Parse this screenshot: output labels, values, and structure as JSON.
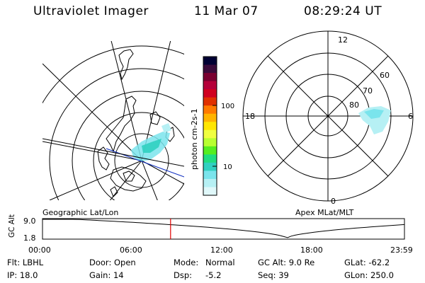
{
  "header": {
    "title": "Ultraviolet Imager",
    "date": "11 Mar 07",
    "time": "08:29:24 UT"
  },
  "colorbar": {
    "unit_label": "photon cm-2s-1",
    "ticks": [
      "100",
      "10"
    ],
    "colors": [
      "#000033",
      "#3a0a3a",
      "#7a0030",
      "#b5003a",
      "#d00020",
      "#e03000",
      "#ff7a00",
      "#ffb400",
      "#ffe600",
      "#f0ff40",
      "#b8ff30",
      "#55ee20",
      "#20dd80",
      "#30d0c0",
      "#7ae4ec",
      "#b6f0f4",
      "#e0f8fa"
    ]
  },
  "geo_map": {
    "label": "Geographic Lat/Lon"
  },
  "apex_map": {
    "label": "Apex MLat/MLT",
    "mlt_labels": {
      "top": "12",
      "left": "18",
      "right": "6",
      "bottom": "0"
    },
    "lat_labels": [
      "60",
      "70",
      "80"
    ]
  },
  "altitude_plot": {
    "ylabel": "GC Alt",
    "y_max": "9.0",
    "y_min": "1.8",
    "x_ticks": [
      "00:00",
      "06:00",
      "12:00",
      "18:00",
      "23:59"
    ],
    "current_time_hours": 8.49,
    "marker_color": "#e00000"
  },
  "info": {
    "flt": "Flt: LBHL",
    "ip": "IP: 18.0",
    "door": "Door: Open",
    "gain": "Gain: 14",
    "mode_label": "Mode:",
    "mode_value": "Normal",
    "dsp_label": "Dsp:",
    "dsp_value": "-5.2",
    "gc_alt": "GC Alt: 9.0 Re",
    "seq": "Seq: 39",
    "glat": "GLat: -62.2",
    "glon": "GLon: 250.0"
  }
}
